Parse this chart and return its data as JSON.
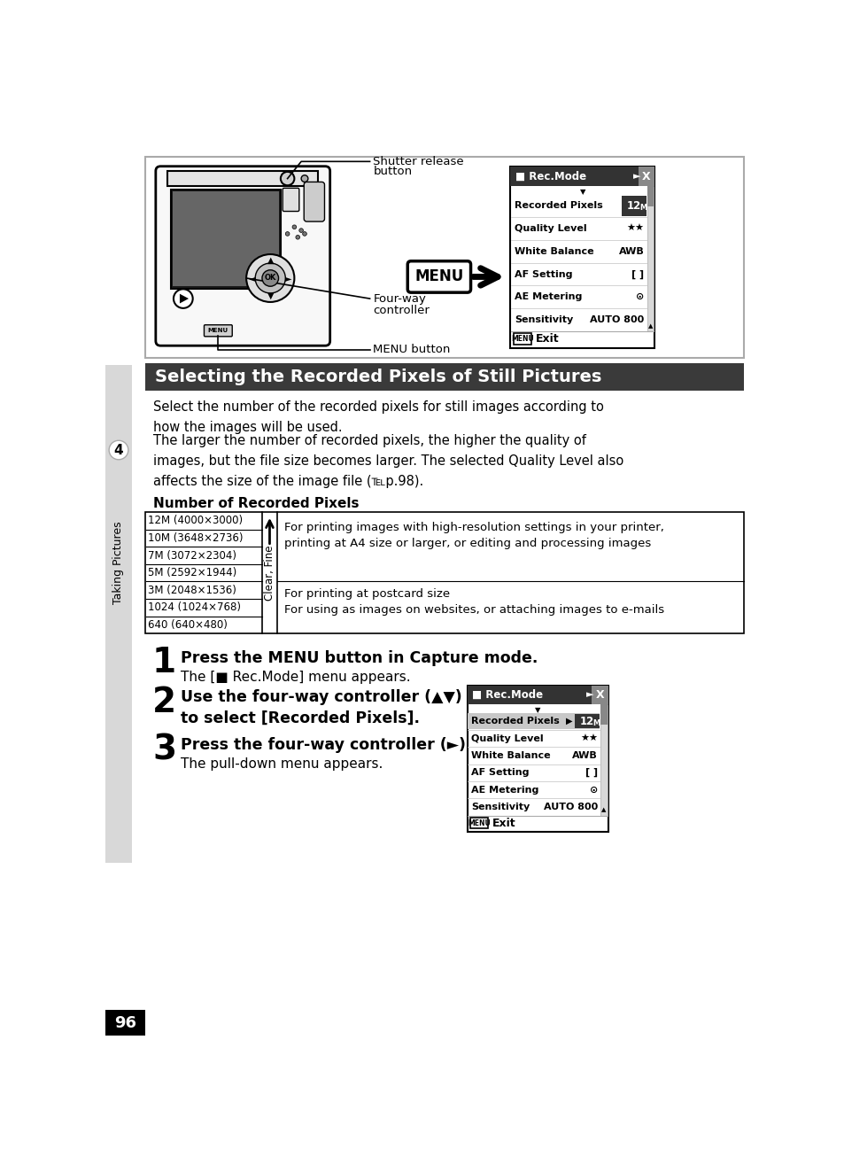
{
  "page_bg": "#ffffff",
  "page_number": "96",
  "section_title": "Selecting the Recorded Pixels of Still Pictures",
  "section_title_bg": "#3a3a3a",
  "section_title_color": "#ffffff",
  "body_text_1": "Select the number of the recorded pixels for still images according to\nhow the images will be used.",
  "body_text_2": "The larger the number of recorded pixels, the higher the quality of\nimages, but the file size becomes larger. The selected Quality Level also\naffects the size of the image file (℡p.98).",
  "table_title": "Number of Recorded Pixels",
  "pixel_rows": [
    "12M (4000×3000)",
    "10M (3648×2736)",
    "7M (3072×2304)",
    "5M (2592×1944)",
    "3M (2048×1536)",
    "1024 (1024×768)",
    "640 (640×480)"
  ],
  "rotated_label": "Clear, Fine",
  "table_desc_top": "For printing images with high-resolution settings in your printer,\nprinting at A4 size or larger, or editing and processing images",
  "table_desc_bot": "For printing at postcard size\nFor using as images on websites, or attaching images to e-mails",
  "step1_bold": "Press the MENU button in Capture mode.",
  "step1_normal": "The [■ Rec.Mode] menu appears.",
  "step2_bold_line1": "Use the four-way controller (▲▼)",
  "step2_bold_line2": "to select [Recorded Pixels].",
  "step3_bold": "Press the four-way controller (►).",
  "step3_normal": "The pull-down menu appears.",
  "menu_items": [
    "Recorded Pixels",
    "Quality Level",
    "White Balance",
    "AF Setting",
    "AE Metering",
    "Sensitivity"
  ],
  "menu_values": [
    " ",
    "★★",
    "AWB",
    "[ ]",
    "◎",
    "AUTO 800"
  ],
  "left_tab_text": "Taking Pictures",
  "left_tab_number": "4",
  "cam_label_shutter": "Shutter release\nbutton",
  "cam_label_fourway": "Four-way\ncontroller",
  "cam_label_menu": "MENU button",
  "menu_badge": "MENU"
}
